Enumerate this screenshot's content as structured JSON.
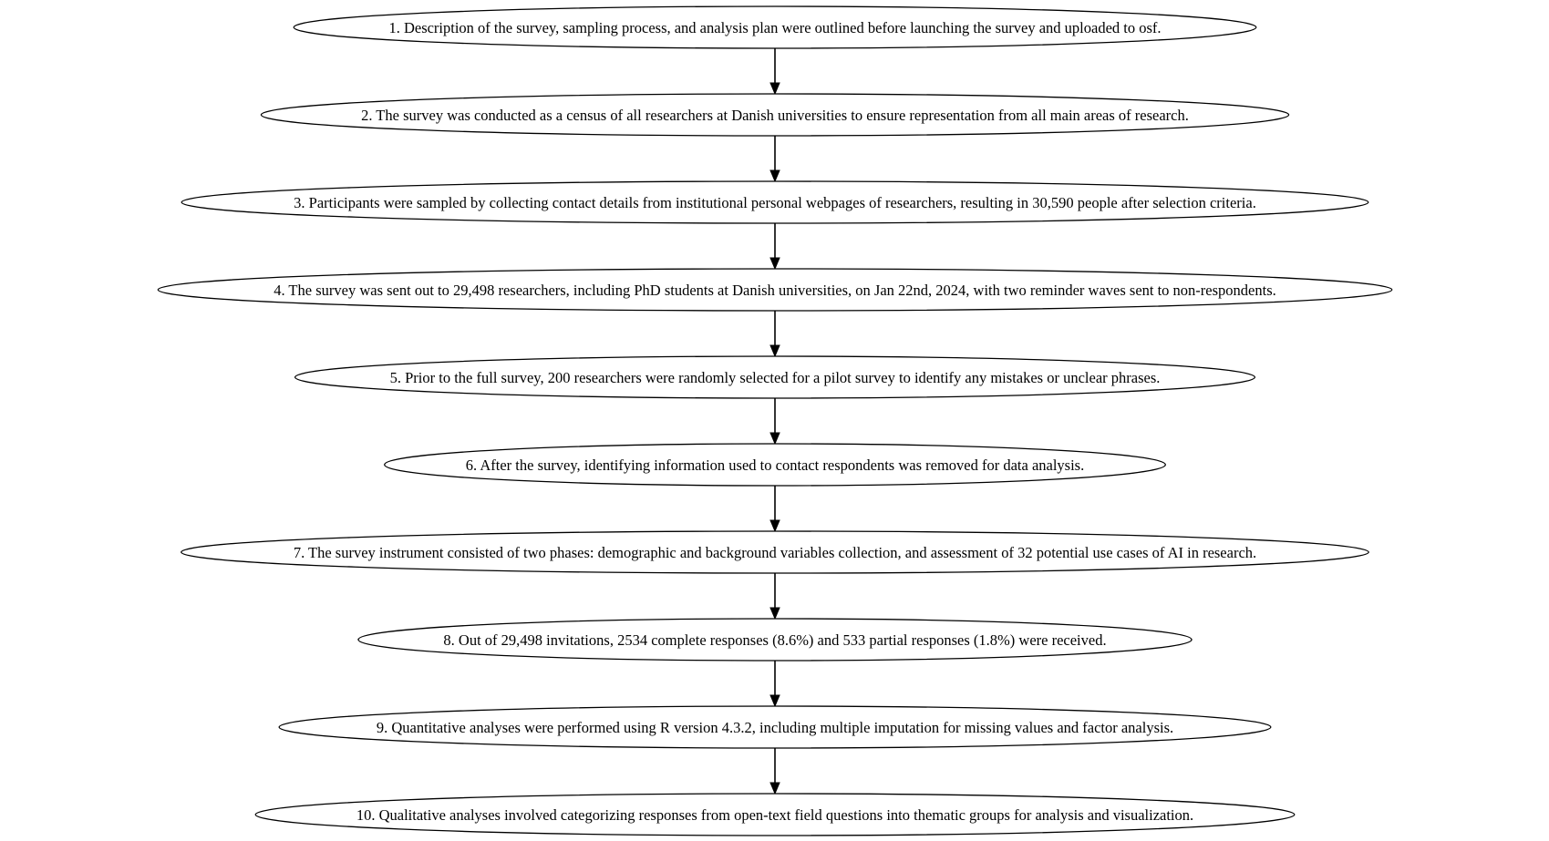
{
  "diagram": {
    "type": "flowchart",
    "direction": "top-to-bottom",
    "node_shape": "ellipse",
    "stroke_color": "#000000",
    "fill_color": "#ffffff",
    "steps": [
      {
        "label": "1. Description of the survey, sampling process, and analysis plan were outlined before launching the survey and uploaded to osf."
      },
      {
        "label": "2. The survey was conducted as a census of all researchers at Danish universities to ensure representation from all main areas of research."
      },
      {
        "label": "3. Participants were sampled by collecting contact details from institutional personal webpages of researchers, resulting in 30,590 people after selection criteria."
      },
      {
        "label": "4. The survey was sent out to 29,498 researchers, including PhD students at Danish universities, on Jan 22nd, 2024, with two reminder waves sent to non-respondents."
      },
      {
        "label": "5. Prior to the full survey, 200 researchers were randomly selected for a pilot survey to identify any mistakes or unclear phrases."
      },
      {
        "label": "6. After the survey, identifying information used to contact respondents was removed for data analysis."
      },
      {
        "label": "7. The survey instrument consisted of two phases: demographic and background variables collection, and assessment of 32 potential use cases of AI in research."
      },
      {
        "label": "8. Out of 29,498 invitations, 2534 complete responses (8.6%) and 533 partial responses (1.8%) were received."
      },
      {
        "label": "9. Quantitative analyses were performed using R version 4.3.2, including multiple imputation for missing values and factor analysis."
      },
      {
        "label": "10. Qualitative analyses involved categorizing responses from open-text field questions into thematic groups for analysis and visualization."
      }
    ],
    "edges": [
      {
        "from": 1,
        "to": 2
      },
      {
        "from": 2,
        "to": 3
      },
      {
        "from": 3,
        "to": 4
      },
      {
        "from": 4,
        "to": 5
      },
      {
        "from": 5,
        "to": 6
      },
      {
        "from": 6,
        "to": 7
      },
      {
        "from": 7,
        "to": 8
      },
      {
        "from": 8,
        "to": 9
      },
      {
        "from": 9,
        "to": 10
      }
    ]
  }
}
